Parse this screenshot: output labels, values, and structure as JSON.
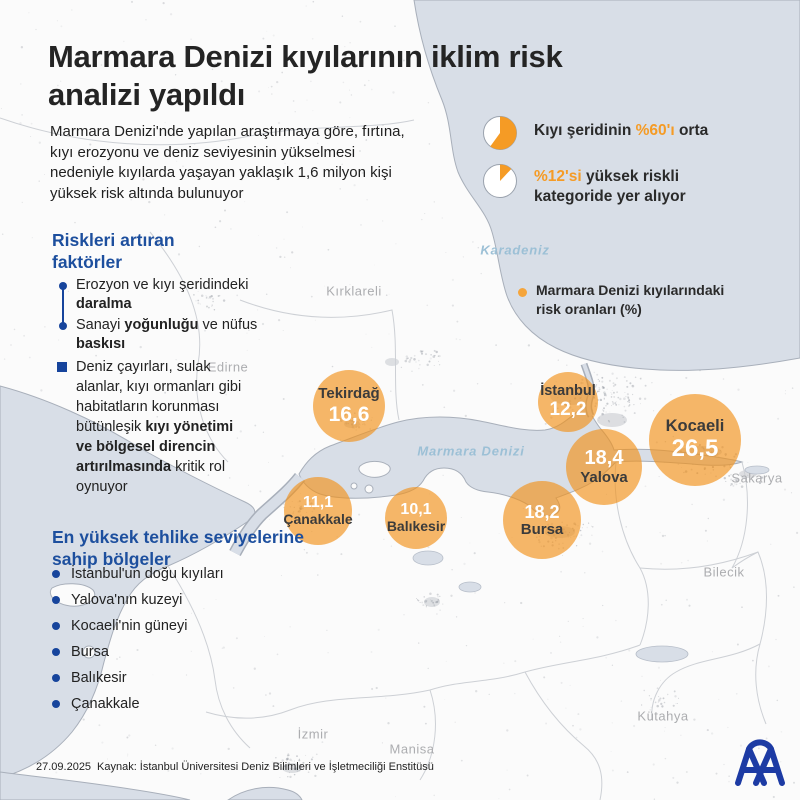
{
  "title": {
    "line1": "Marmara Denizi kıyılarının iklim risk",
    "line2": "analizi yapıldı"
  },
  "intro": "Marmara Denizi'nde yapılan araştırmaya göre, fırtına, kıyı erozyonu ve deniz seviyesinin yükselmesi nedeniyle kıyılarda yaşayan yaklaşık 1,6 milyon kişi yüksek risk altında bulunuyor",
  "stats": [
    {
      "percent": 60,
      "pre": "Kıyı şeridinin ",
      "highlight": "%60'ı",
      "post": " orta"
    },
    {
      "percent": 12,
      "pre": "",
      "highlight": "%12'si",
      "post": " yüksek riskli kategoride yer alıyor"
    }
  ],
  "factors": {
    "heading": "Riskleri artıran faktörler",
    "items": [
      {
        "pre": "Erozyon ve kıyı şeridindeki ",
        "bold": "daralma",
        "mid": "",
        "bold2": ""
      },
      {
        "pre": "Sanayi ",
        "bold": "yoğunluğu",
        "mid": " ve nüfus ",
        "bold2": "baskısı"
      }
    ],
    "note": {
      "pre": "Deniz çayırları, sulak alanlar, kıyı ormanları gibi habitatların korunması bütünleşik ",
      "bold": "kıyı yönetimi ve bölgesel direncin artırılmasında",
      "post": " kritik rol oynuyor"
    }
  },
  "regions": {
    "heading": "En yüksek tehlike seviyelerine sahip bölgeler",
    "items": [
      "İstanbul'un doğu kıyıları",
      "Yalova'nın kuzeyi",
      "Kocaeli'nin güneyi",
      "Bursa",
      "Balıkesir",
      "Çanakkale"
    ]
  },
  "map": {
    "legend": "Marmara Denizi kıyılarındaki risk oranları (%)",
    "sea_labels": [
      "Karadeniz",
      "Marmara Denizi"
    ],
    "province_labels": [
      "Kırklareli",
      "Edirne",
      "Sakarya",
      "Bilecik",
      "Kütahya",
      "İzmir",
      "Manisa"
    ],
    "bubbles": [
      {
        "name": "Tekirdağ",
        "value": "16,6"
      },
      {
        "name": "İstanbul",
        "value": "12,2"
      },
      {
        "name": "Kocaeli",
        "value": "26,5"
      },
      {
        "name": "Yalova",
        "value": "18,4"
      },
      {
        "name": "Çanakkale",
        "value": "11,1"
      },
      {
        "name": "Balıkesir",
        "value": "10,1"
      },
      {
        "name": "Bursa",
        "value": "18,2"
      }
    ]
  },
  "footer": {
    "date": "27.09.2025",
    "source": "Kaynak: İstanbul Üniversitesi Deniz Bilimleri ve İşletmeciliği Enstitüsü",
    "logo": "AA"
  },
  "colors": {
    "accent_orange": "#F59B25",
    "bubble_orange": "rgba(241,146,27,0.66)",
    "heading_blue": "#1D4F9E",
    "bullet_blue": "#16449C",
    "sea": "#D8DEE7",
    "aa_blue": "#1D3BA4"
  },
  "chart_data": {
    "type": "bar",
    "subtype": "bubble-map",
    "title": "Marmara Denizi kıyılarının iklim risk analizi yapıldı",
    "categories": [
      "Tekirdağ",
      "İstanbul",
      "Kocaeli",
      "Yalova",
      "Çanakkale",
      "Balıkesir",
      "Bursa"
    ],
    "values": [
      16.6,
      12.2,
      26.5,
      18.4,
      11.1,
      10.1,
      18.2
    ],
    "unit": "%",
    "series_label": "Marmara Denizi kıyılarındaki risk oranları (%)",
    "pies": [
      {
        "label": "Kıyı şeridinin %60'ı orta",
        "value": 60
      },
      {
        "label": "%12'si yüksek riskli kategoride yer alıyor",
        "value": 12
      }
    ]
  }
}
